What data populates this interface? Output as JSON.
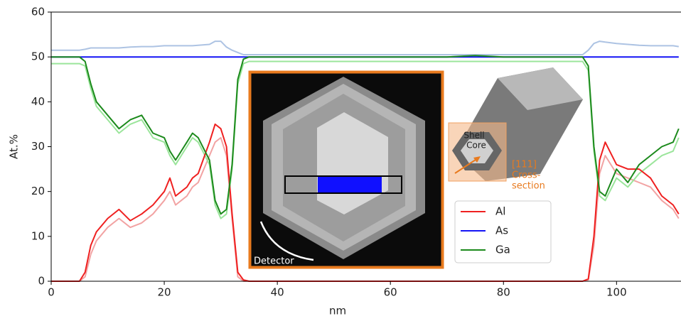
{
  "chart_data": {
    "type": "line",
    "xlabel": "nm",
    "ylabel": "At.%",
    "xlim": [
      0,
      111.4
    ],
    "ylim": [
      0,
      60
    ],
    "xticks": [
      0,
      20,
      40,
      60,
      80,
      100
    ],
    "yticks": [
      0,
      10,
      20,
      30,
      40,
      50,
      60
    ],
    "grid": false,
    "x": [
      0,
      2,
      4,
      5,
      6,
      7,
      8,
      10,
      12,
      14,
      16,
      18,
      20,
      21,
      22,
      24,
      25,
      26,
      28,
      29,
      30,
      31,
      32,
      33,
      34,
      35,
      36,
      40,
      45,
      50,
      55,
      60,
      65,
      70,
      75,
      80,
      85,
      90,
      93,
      94,
      95,
      96,
      97,
      98,
      100,
      102,
      104,
      106,
      108,
      110,
      111
    ],
    "series": [
      {
        "color": "#f2a3a3",
        "values": [
          0,
          0,
          0,
          0,
          1,
          6,
          9,
          12,
          14,
          12,
          13,
          15,
          18,
          20,
          17,
          19,
          21,
          22,
          28,
          31,
          32,
          28,
          14,
          1,
          0,
          0,
          0,
          0,
          0,
          0,
          0,
          0,
          0,
          0,
          0,
          0,
          0,
          0,
          0,
          0,
          0.3,
          8,
          24,
          28,
          24,
          23,
          22,
          21,
          18,
          16,
          14
        ]
      },
      {
        "color": "#9be59b",
        "values": [
          48.5,
          48.5,
          48.5,
          48.5,
          48,
          43,
          39,
          36,
          33,
          35,
          36,
          32,
          31,
          28,
          26,
          30,
          32,
          31,
          26,
          17,
          14,
          15,
          25,
          44,
          48.5,
          49,
          49,
          49,
          49,
          49,
          49,
          49,
          49,
          49,
          49,
          49,
          49,
          49,
          49,
          49,
          47,
          29,
          19,
          18,
          23,
          21,
          24,
          26,
          28,
          29,
          32
        ]
      },
      {
        "color": "#adc3e3",
        "values": [
          51.5,
          51.5,
          51.5,
          51.5,
          51.7,
          52,
          52,
          52,
          52,
          52.2,
          52.3,
          52.3,
          52.5,
          52.5,
          52.5,
          52.5,
          52.5,
          52.6,
          52.8,
          53.5,
          53.5,
          52.2,
          51.5,
          51,
          50.5,
          50.5,
          50.5,
          50.5,
          50.5,
          50.5,
          50.5,
          50.5,
          50.5,
          50.5,
          50.5,
          50.5,
          50.5,
          50.5,
          50.5,
          50.5,
          51.5,
          53,
          53.5,
          53.3,
          53,
          52.8,
          52.6,
          52.5,
          52.5,
          52.5,
          52.3
        ]
      },
      {
        "name": "Al",
        "color": "#ef2020",
        "values": [
          0,
          0,
          0,
          0,
          2,
          8,
          11,
          14,
          16,
          13.5,
          15,
          17,
          20,
          23,
          19,
          21,
          23,
          24,
          31,
          35,
          34,
          30,
          15,
          2,
          0.3,
          0,
          0,
          0,
          0,
          0,
          0,
          0,
          0,
          0,
          0,
          0,
          0,
          0,
          0,
          0,
          0.5,
          10,
          27,
          31,
          26,
          25,
          25,
          23,
          19,
          17,
          15
        ]
      },
      {
        "name": "As",
        "color": "#1414f5",
        "values": [
          50,
          50,
          50,
          50,
          50,
          50,
          50,
          50,
          50,
          50,
          50,
          50,
          50,
          50,
          50,
          50,
          50,
          50,
          50,
          50,
          50,
          50,
          50,
          50,
          50,
          50,
          50,
          50,
          50,
          50,
          50,
          50,
          50,
          50,
          50,
          50,
          50,
          50,
          50,
          50,
          50,
          50,
          50,
          50,
          50,
          50,
          50,
          50,
          50,
          50,
          50
        ]
      },
      {
        "name": "Ga",
        "color": "#1c8a1c",
        "values": [
          50,
          50,
          50,
          50,
          49,
          44,
          40,
          37,
          34,
          36,
          37,
          33,
          32,
          29,
          27,
          31,
          33,
          32,
          27,
          18,
          15,
          16,
          26,
          45,
          49.5,
          50,
          50,
          50,
          50,
          50,
          50,
          50,
          50,
          50,
          50.3,
          50,
          50,
          50,
          50,
          50,
          48,
          30,
          20,
          19,
          25,
          22,
          26,
          28,
          30,
          31,
          34
        ]
      }
    ],
    "inset_labels": {
      "detector": "Detector",
      "shell": "Shell",
      "core": "Core",
      "direction": "[111]",
      "cross_section": [
        "Cross-",
        "section"
      ]
    }
  }
}
